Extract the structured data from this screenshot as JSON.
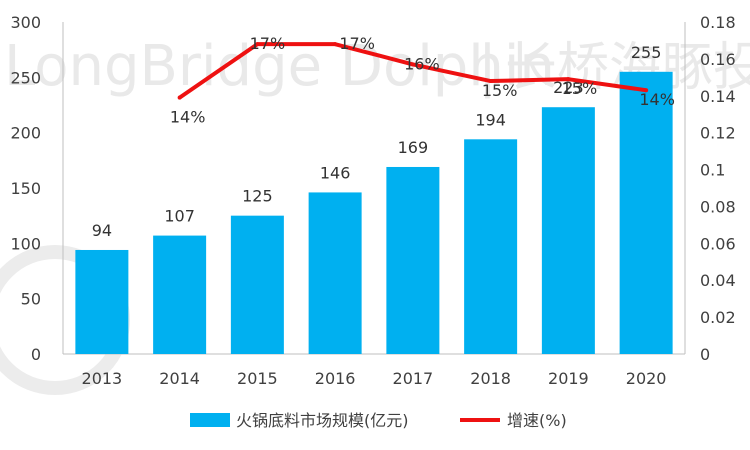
{
  "watermark": {
    "text_en": "LongBridge Dolphin",
    "separator": "|",
    "text_cn": "长桥海豚投研"
  },
  "chart_data": {
    "type": "bar",
    "categories": [
      "2013",
      "2014",
      "2015",
      "2016",
      "2017",
      "2018",
      "2019",
      "2020"
    ],
    "series": [
      {
        "name": "火锅底料市场规模(亿元)",
        "kind": "bar",
        "axis": "left",
        "color": "#00b0f0",
        "values": [
          94,
          107,
          125,
          146,
          169,
          194,
          223,
          255
        ],
        "labels": [
          "94",
          "107",
          "125",
          "146",
          "169",
          "194",
          "223",
          "255"
        ]
      },
      {
        "name": "增速(%)",
        "kind": "line",
        "axis": "right",
        "color": "#ee1111",
        "values": [
          null,
          0.139,
          0.168,
          0.168,
          0.157,
          0.148,
          0.149,
          0.143
        ],
        "labels": [
          null,
          "14%",
          "17%",
          "17%",
          "16%",
          "15%",
          "15%",
          "14%"
        ]
      }
    ],
    "y_left": {
      "range": [
        0,
        300
      ],
      "ticks": [
        "0",
        "50",
        "100",
        "150",
        "200",
        "250",
        "300"
      ]
    },
    "y_right": {
      "range": [
        0,
        0.18
      ],
      "ticks": [
        "0",
        "0.02",
        "0.04",
        "0.06",
        "0.08",
        "0.1",
        "0.12",
        "0.14",
        "0.16",
        "0.18"
      ]
    },
    "legend_position": "bottom",
    "grid": false,
    "title": ""
  }
}
